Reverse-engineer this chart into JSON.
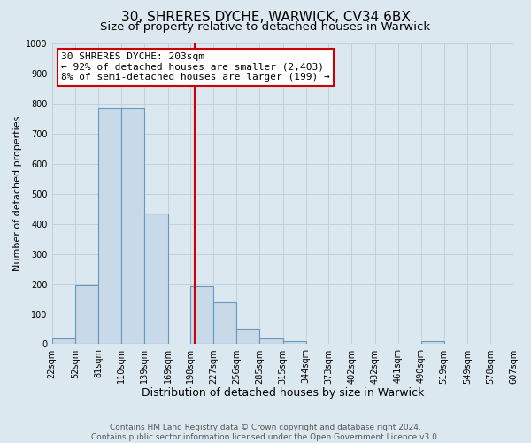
{
  "title": "30, SHRERES DYCHE, WARWICK, CV34 6BX",
  "subtitle": "Size of property relative to detached houses in Warwick",
  "xlabel": "Distribution of detached houses by size in Warwick",
  "ylabel": "Number of detached properties",
  "bin_labels": [
    "22sqm",
    "52sqm",
    "81sqm",
    "110sqm",
    "139sqm",
    "169sqm",
    "198sqm",
    "227sqm",
    "256sqm",
    "285sqm",
    "315sqm",
    "344sqm",
    "373sqm",
    "402sqm",
    "432sqm",
    "461sqm",
    "490sqm",
    "519sqm",
    "549sqm",
    "578sqm",
    "607sqm"
  ],
  "bin_edges": [
    22,
    52,
    81,
    110,
    139,
    169,
    198,
    227,
    256,
    285,
    315,
    344,
    373,
    402,
    432,
    461,
    490,
    519,
    549,
    578,
    607
  ],
  "bar_heights": [
    20,
    195,
    785,
    785,
    435,
    0,
    193,
    140,
    50,
    20,
    10,
    0,
    0,
    0,
    0,
    0,
    10,
    0,
    0,
    0,
    0
  ],
  "bar_color": "#c8d9e8",
  "bar_edge_color": "#6699bb",
  "grid_color": "#c0cdd8",
  "background_color": "#dce8f0",
  "vline_x": 203,
  "vline_color": "#cc0000",
  "annotation_line1": "30 SHRERES DYCHE: 203sqm",
  "annotation_line2": "← 92% of detached houses are smaller (2,403)",
  "annotation_line3": "8% of semi-detached houses are larger (199) →",
  "annotation_box_color": "#ffffff",
  "annotation_box_edge_color": "#cc0000",
  "ylim": [
    0,
    1000
  ],
  "yticks": [
    0,
    100,
    200,
    300,
    400,
    500,
    600,
    700,
    800,
    900,
    1000
  ],
  "footer_line1": "Contains HM Land Registry data © Crown copyright and database right 2024.",
  "footer_line2": "Contains public sector information licensed under the Open Government Licence v3.0.",
  "title_fontsize": 11,
  "subtitle_fontsize": 9.5,
  "xlabel_fontsize": 9,
  "ylabel_fontsize": 8,
  "tick_fontsize": 7,
  "annotation_fontsize": 8,
  "footer_fontsize": 6.5
}
